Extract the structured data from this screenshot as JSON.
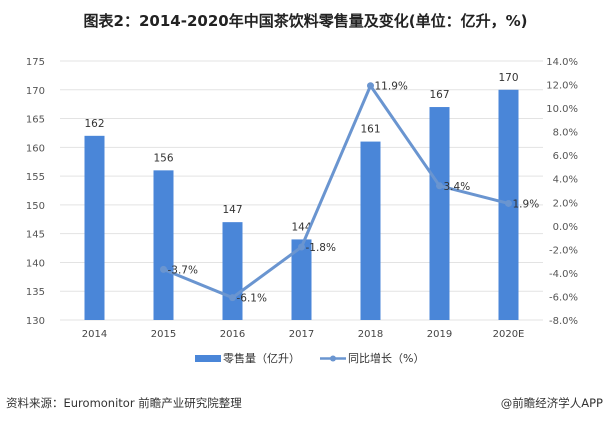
{
  "chart_data": {
    "type": "bar+line",
    "title": "图表2：2014-2020年中国茶饮料零售量及变化(单位：亿升，%)",
    "categories": [
      "2014",
      "2015",
      "2016",
      "2017",
      "2018",
      "2019",
      "2020E"
    ],
    "series": [
      {
        "name": "零售量（亿升）",
        "type": "bar",
        "axis": "left",
        "values": [
          162,
          156,
          147,
          144,
          161,
          167,
          170
        ],
        "labels": [
          "162",
          "156",
          "147",
          "144",
          "161",
          "167",
          "170"
        ]
      },
      {
        "name": "同比增长（%）",
        "type": "line",
        "axis": "right",
        "values": [
          null,
          -3.7,
          -6.1,
          -1.8,
          11.9,
          3.4,
          1.9
        ],
        "labels": [
          "",
          "-3.7%",
          "-6.1%",
          "-1.8%",
          "11.9%",
          "3.4%",
          "1.9%"
        ]
      }
    ],
    "ylim": [
      130,
      175
    ],
    "yticks": [
      "130",
      "135",
      "140",
      "145",
      "150",
      "155",
      "160",
      "165",
      "170",
      "175"
    ],
    "y2lim": [
      -8,
      14
    ],
    "y2ticks": [
      "-8.0%",
      "-6.0%",
      "-4.0%",
      "-2.0%",
      "0.0%",
      "2.0%",
      "4.0%",
      "6.0%",
      "8.0%",
      "10.0%",
      "12.0%",
      "14.0%"
    ],
    "grid": true,
    "legend": "bottom",
    "colors": {
      "bar": "#4a86d8",
      "line": "#6a95d0"
    }
  },
  "footer": {
    "source": "资料来源：Euromonitor 前瞻产业研究院整理",
    "credit": "@前瞻经济学人APP"
  }
}
